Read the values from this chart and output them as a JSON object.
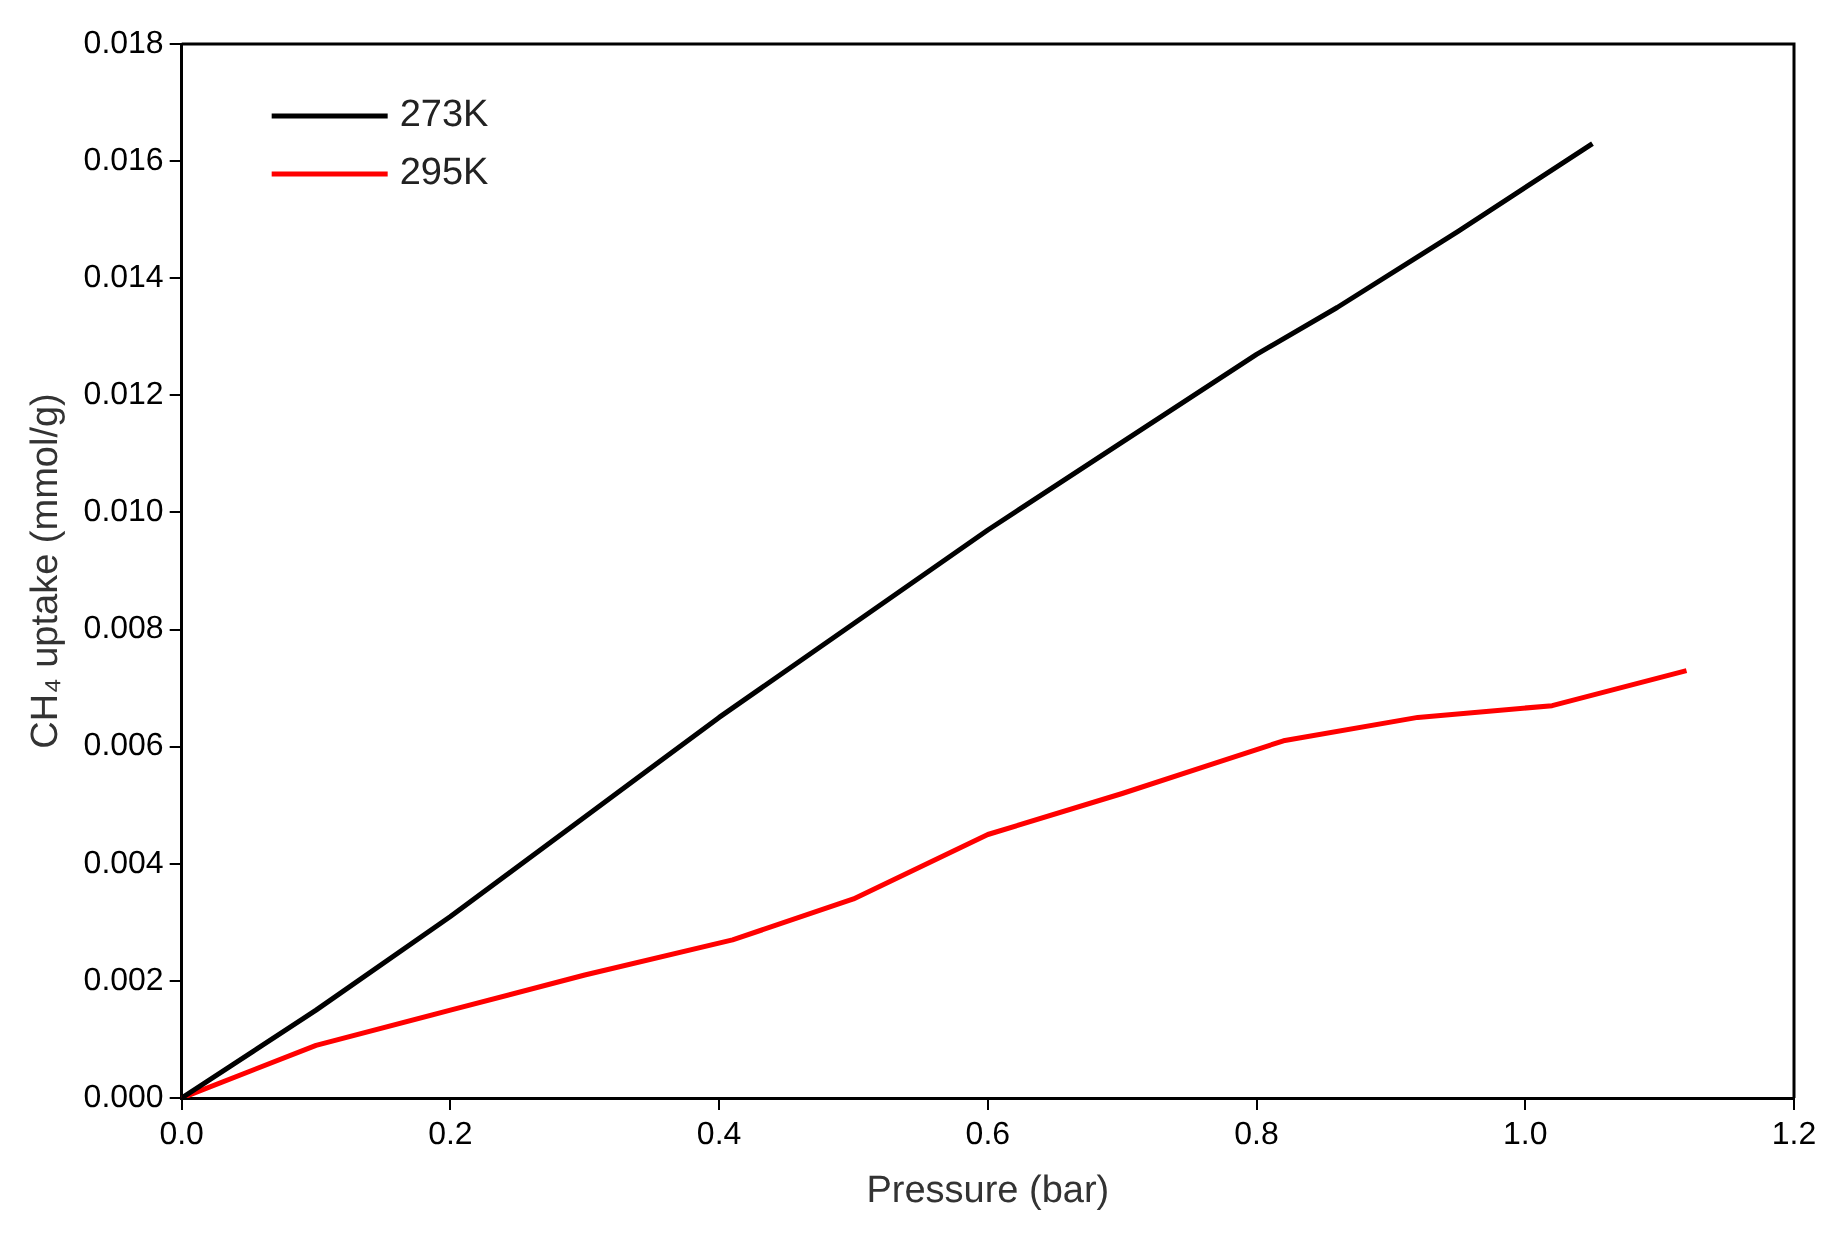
{
  "chart_data": {
    "type": "line",
    "xlabel": "Pressure (bar)",
    "ylabel": "CH₄ uptake (mmol/g)",
    "xlim": [
      0,
      1.2
    ],
    "xticks": [
      {
        "value": 0,
        "label": "0.0"
      },
      {
        "value": 0.2,
        "label": "0.2"
      },
      {
        "value": 0.4,
        "label": "0.4"
      },
      {
        "value": 0.6,
        "label": "0.6"
      },
      {
        "value": 0.8,
        "label": "0.8"
      },
      {
        "value": 1,
        "label": "1.0"
      },
      {
        "value": 1.2,
        "label": "1.2"
      }
    ],
    "ylim": [
      0,
      0.018
    ],
    "yticks": [
      {
        "value": 0,
        "label": "0.000"
      },
      {
        "value": 0.002,
        "label": "0.002"
      },
      {
        "value": 0.004,
        "label": "0.004"
      },
      {
        "value": 0.006,
        "label": "0.006"
      },
      {
        "value": 0.008,
        "label": "0.008"
      },
      {
        "value": 0.01,
        "label": "0.010"
      },
      {
        "value": 0.012,
        "label": "0.012"
      },
      {
        "value": 0.014,
        "label": "0.014"
      },
      {
        "value": 0.016,
        "label": "0.016"
      },
      {
        "value": 0.018,
        "label": "0.018"
      }
    ],
    "legend": "top left",
    "grid": false,
    "marker": "none",
    "line_style": "solid",
    "series": [
      {
        "name": "273K",
        "color": "#000000",
        "x": [
          0,
          0.1,
          0.2,
          0.3,
          0.4,
          0.5,
          0.6,
          0.7,
          0.8,
          0.86,
          0.95,
          1.05
        ],
        "values": [
          0,
          0.0015,
          0.0031,
          0.0048,
          0.0065,
          0.0081,
          0.0097,
          0.0112,
          0.0127,
          0.0135,
          0.0148,
          0.0163
        ]
      },
      {
        "name": "295K",
        "color": "#ff0000",
        "x": [
          0,
          0.1,
          0.2,
          0.3,
          0.41,
          0.5,
          0.6,
          0.7,
          0.82,
          0.92,
          1.02,
          1.12
        ],
        "values": [
          0,
          0.0009,
          0.0015,
          0.0021,
          0.0027,
          0.0034,
          0.0045,
          0.0052,
          0.0061,
          0.0065,
          0.0067,
          0.0073
        ]
      }
    ]
  }
}
